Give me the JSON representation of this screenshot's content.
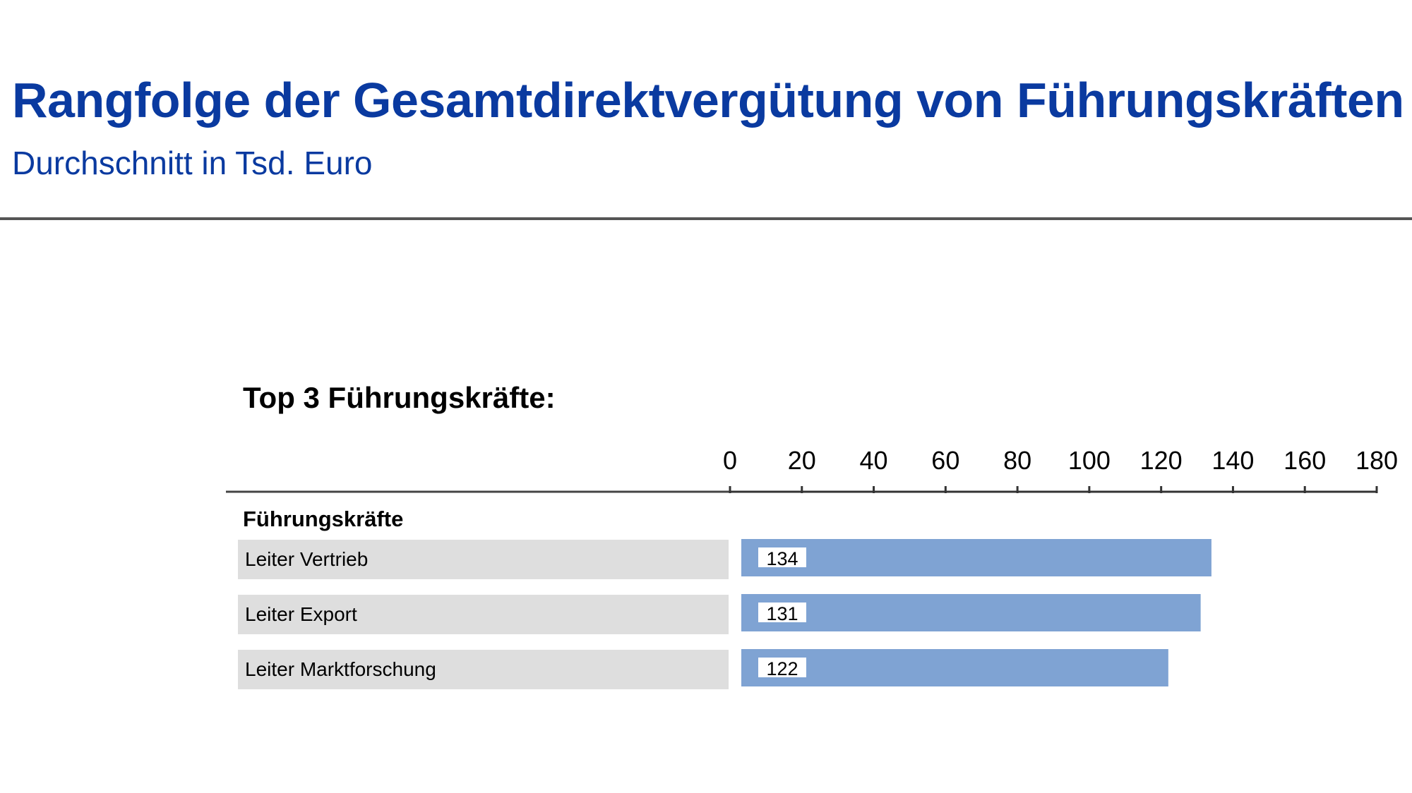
{
  "header": {
    "title": "Rangfolge der Gesamtdirektvergütung von Führungskräften",
    "subtitle": "Durchschnitt in Tsd. Euro"
  },
  "chart_data": {
    "type": "bar",
    "orientation": "horizontal",
    "title": "Top 3 Führungskräfte:",
    "group_label": "Führungskräfte",
    "categories": [
      "Leiter Vertrieb",
      "Leiter Export",
      "Leiter Marktforschung"
    ],
    "values": [
      134,
      131,
      122
    ],
    "xlim": [
      0,
      180
    ],
    "xticks": [
      0,
      20,
      40,
      60,
      80,
      100,
      120,
      140,
      160,
      180
    ],
    "axis_position": "top",
    "grid": false,
    "bar_color": "#7fa3d3"
  },
  "colors": {
    "title": "#0a3aa0",
    "label_background": "#dedede"
  }
}
